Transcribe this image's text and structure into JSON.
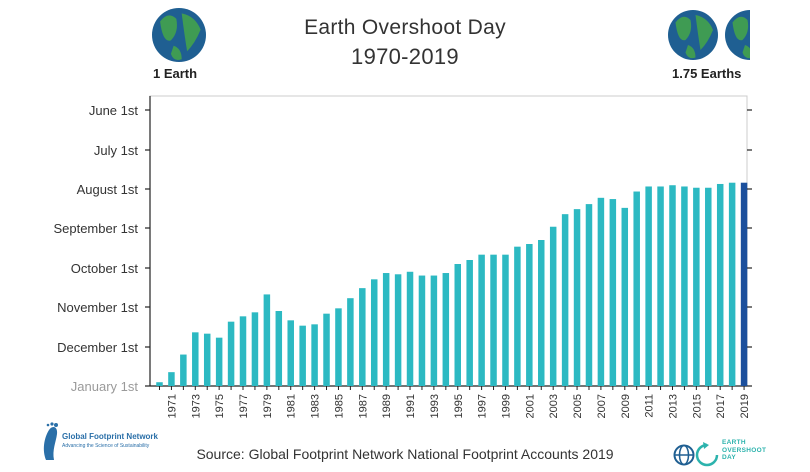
{
  "header": {
    "title": "Earth Overshoot Day",
    "subtitle": "1970-2019",
    "left_globe_label": "1 Earth",
    "right_globe_label": "1.75 Earths"
  },
  "footer": {
    "source": "Source: Global Footprint Network National Footprint Accounts 2019",
    "gfn_name": "Global Footprint Network",
    "gfn_tagline": "Advancing the Science of Sustainability",
    "eod_logo_lines": [
      "EARTH",
      "OVERSHOOT",
      "DAY"
    ]
  },
  "colors": {
    "bar": "#2cb9c2",
    "bar_highlight": "#1b4f9c",
    "axis": "#222222",
    "globe_ocean": "#1f5f92",
    "globe_land": "#3f9b53"
  },
  "chart_data": {
    "type": "bar",
    "title": "Earth Overshoot Day",
    "subtitle": "1970-2019",
    "y_tick_labels": [
      "June 1st",
      "July 1st",
      "August 1st",
      "September 1st",
      "October 1st",
      "November 1st",
      "December 1st",
      "January 1st"
    ],
    "y_axis_direction": "later dates toward the bottom; bars rise from January 1st",
    "x_tick_labels": [
      "1971",
      "1973",
      "1975",
      "1977",
      "1979",
      "1981",
      "1983",
      "1985",
      "1987",
      "1989",
      "1991",
      "1993",
      "1995",
      "1997",
      "1999",
      "2001",
      "2003",
      "2005",
      "2007",
      "2009",
      "2011",
      "2013",
      "2015",
      "2017",
      "2019"
    ],
    "highlighted_year": 2019,
    "years": [
      1970,
      1971,
      1972,
      1973,
      1974,
      1975,
      1976,
      1977,
      1978,
      1979,
      1980,
      1981,
      1982,
      1983,
      1984,
      1985,
      1986,
      1987,
      1988,
      1989,
      1990,
      1991,
      1992,
      1993,
      1994,
      1995,
      1996,
      1997,
      1998,
      1999,
      2000,
      2001,
      2002,
      2003,
      2004,
      2005,
      2006,
      2007,
      2008,
      2009,
      2010,
      2011,
      2012,
      2013,
      2014,
      2015,
      2016,
      2017,
      2018,
      2019
    ],
    "overshoot_dates": [
      "2019-12-29",
      "2019-12-21",
      "2019-12-07",
      "2019-11-20",
      "2019-11-21",
      "2019-11-24",
      "2019-11-12",
      "2019-11-08",
      "2019-11-05",
      "2019-10-22",
      "2019-11-04",
      "2019-11-11",
      "2019-11-15",
      "2019-11-14",
      "2019-11-06",
      "2019-11-02",
      "2019-10-25",
      "2019-10-17",
      "2019-10-10",
      "2019-10-05",
      "2019-10-06",
      "2019-10-04",
      "2019-10-07",
      "2019-10-07",
      "2019-10-05",
      "2019-09-28",
      "2019-09-25",
      "2019-09-21",
      "2019-09-21",
      "2019-09-21",
      "2019-09-15",
      "2019-09-13",
      "2019-09-10",
      "2019-08-31",
      "2019-08-21",
      "2019-08-17",
      "2019-08-13",
      "2019-08-08",
      "2019-08-09",
      "2019-08-16",
      "2019-08-03",
      "2019-07-30",
      "2019-07-30",
      "2019-07-29",
      "2019-07-30",
      "2019-07-31",
      "2019-07-31",
      "2019-07-28",
      "2019-07-27",
      "2019-07-27"
    ]
  }
}
